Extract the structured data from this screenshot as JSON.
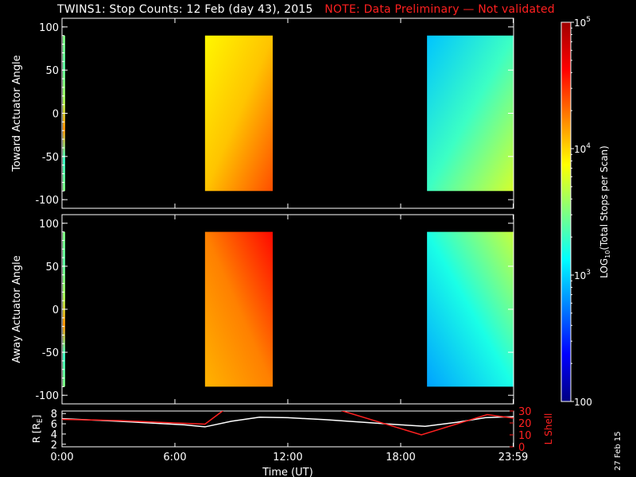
{
  "title": {
    "main": "TWINS1: Stop Counts: 12 Feb (day  43), 2015",
    "note": "NOTE: Data Preliminary — Not validated",
    "note_color": "#ff2020"
  },
  "side_label": "27 Feb 15",
  "chart_data": [
    {
      "type": "heatmap",
      "name": "toward",
      "ylabel": "Toward Actuator Angle",
      "yticks": [
        "100",
        "50",
        "0",
        "-50",
        "-100"
      ],
      "ytick_values": [
        100,
        50,
        0,
        -50,
        -100
      ],
      "ylim": [
        -110,
        110
      ],
      "data_blocks": [
        {
          "start_hour": 7.6,
          "end_hour": 11.2,
          "angle_range": [
            -90,
            90
          ],
          "log_level": 3.95
        },
        {
          "start_hour": 19.4,
          "end_hour": 24.0,
          "angle_range": [
            -90,
            90
          ],
          "log_level": 3.2
        }
      ]
    },
    {
      "type": "heatmap",
      "name": "away",
      "ylabel": "Away Actuator Angle",
      "yticks": [
        "100",
        "50",
        "0",
        "-50",
        "-100"
      ],
      "ytick_values": [
        100,
        50,
        0,
        -50,
        -100
      ],
      "ylim": [
        -110,
        110
      ],
      "data_blocks": [
        {
          "start_hour": 7.6,
          "end_hour": 11.2,
          "angle_range": [
            -90,
            90
          ],
          "log_level": 4.2
        },
        {
          "start_hour": 19.4,
          "end_hour": 24.0,
          "angle_range": [
            -90,
            90
          ],
          "log_level": 3.0
        }
      ]
    },
    {
      "type": "line",
      "name": "ephemeris",
      "ylabel_left": "R [R",
      "ylabel_left_sub": "E",
      "ylabel_left_end": "]",
      "ylabel_right": "L Shell",
      "yticks_left": [
        "8",
        "6",
        "4",
        "2"
      ],
      "ytick_values_left": [
        8,
        6,
        4,
        2
      ],
      "ylim_left": [
        1.5,
        8.5
      ],
      "yticks_right": [
        "30",
        "20",
        "10",
        "0"
      ],
      "ytick_values_right": [
        30,
        20,
        10,
        0
      ],
      "ylim_right": [
        0,
        30
      ],
      "x_label": "Time (UT)",
      "x_ticks": [
        "0:00",
        "6:00",
        "12:00",
        "18:00",
        "23:59"
      ],
      "x_tick_values": [
        0,
        6,
        12,
        18,
        23.98
      ],
      "xlim": [
        0,
        24
      ],
      "series": [
        {
          "axis": "left",
          "color": "#ffffff",
          "x": [
            0,
            3,
            6.5,
            7.6,
            9,
            10.5,
            12,
            14,
            16,
            18,
            19.3,
            21,
            22.5,
            24
          ],
          "y": [
            7.0,
            6.5,
            5.8,
            5.4,
            6.5,
            7.3,
            7.2,
            6.8,
            6.3,
            5.8,
            5.5,
            6.3,
            7.2,
            7.4
          ]
        },
        {
          "axis": "right",
          "color": "#ff2020",
          "x": [
            0,
            3,
            6,
            7.6,
            8.7,
            14.5,
            19.1,
            22.6,
            24
          ],
          "y": [
            23,
            22,
            20,
            19,
            32,
            32,
            10,
            27,
            24
          ]
        }
      ]
    }
  ],
  "colorbar": {
    "label": "LOG10(Total Stops per Scan)",
    "label_prefix": "LOG",
    "label_sub": "10",
    "label_rest": "(Total Stops per Scan)",
    "ticks": [
      {
        "base": "10",
        "exp": "5",
        "value": 5
      },
      {
        "base": "10",
        "exp": "4",
        "value": 4
      },
      {
        "base": "10",
        "exp": "3",
        "value": 3
      },
      {
        "base": "100",
        "exp": "",
        "value": 2
      }
    ],
    "range": [
      2,
      5
    ],
    "colors": [
      "#000080",
      "#0000ff",
      "#0080ff",
      "#00ffff",
      "#80ff80",
      "#ffff00",
      "#ff8000",
      "#ff0000",
      "#a00000"
    ]
  }
}
